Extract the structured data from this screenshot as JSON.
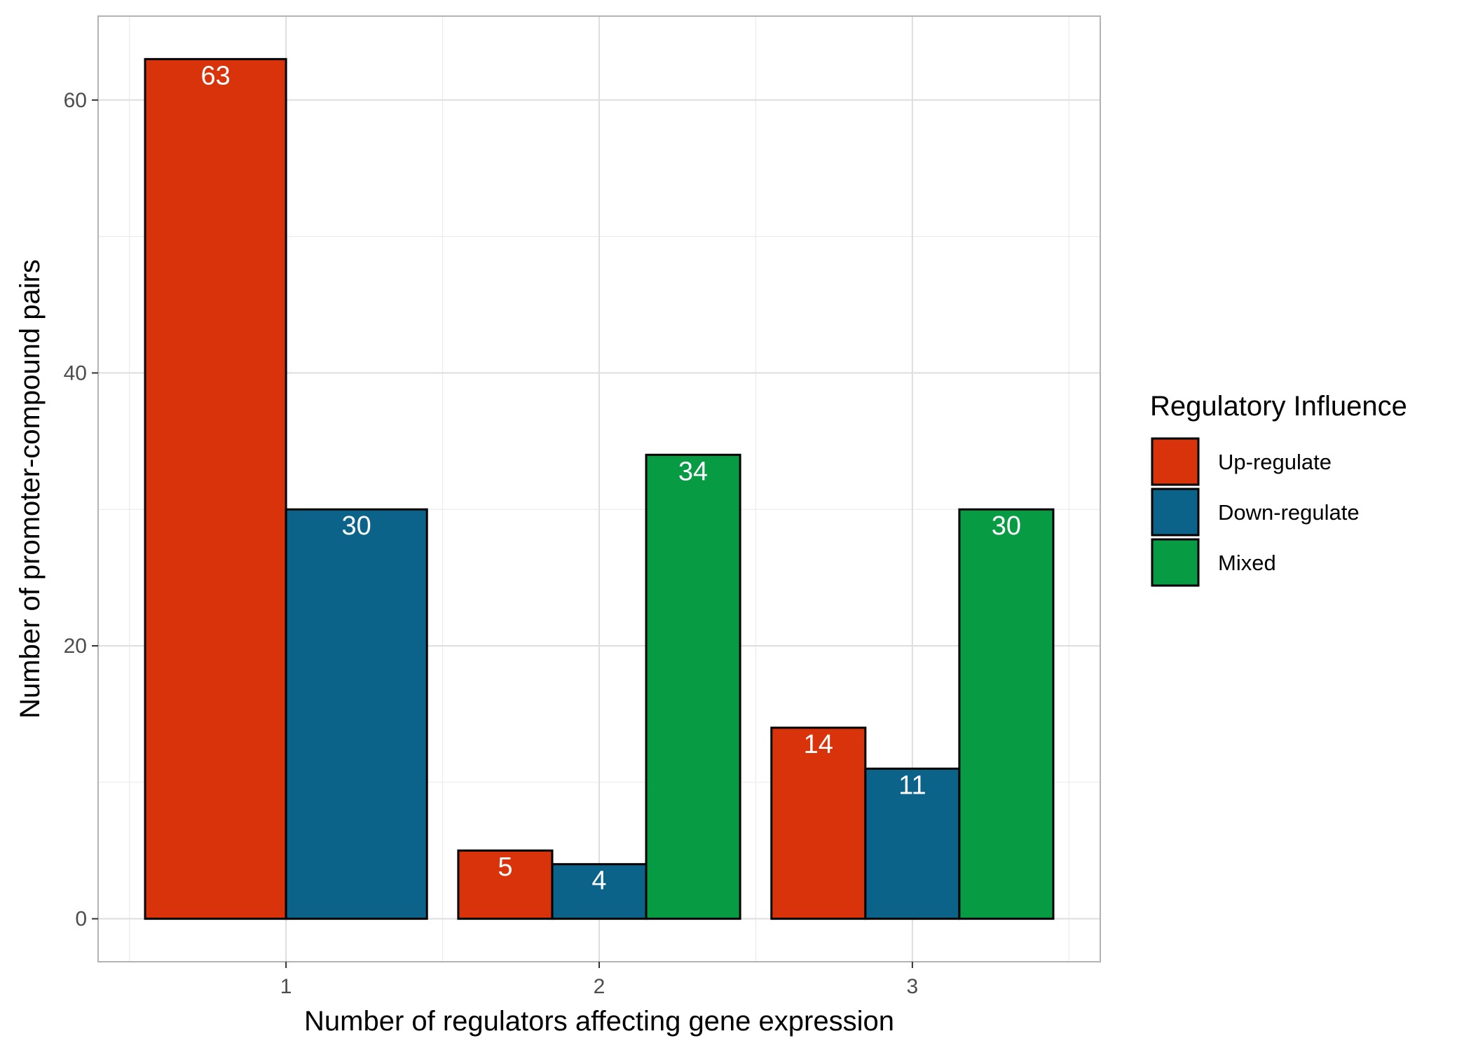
{
  "chart_data": {
    "type": "bar",
    "title": "",
    "xlabel": "Number of regulators affecting gene expression",
    "ylabel": "Number of promoter-compound pairs",
    "categories": [
      "1",
      "2",
      "3"
    ],
    "y_ticks": [
      0,
      20,
      40,
      60
    ],
    "y_tick_labels": [
      "0",
      "20",
      "40",
      "60"
    ],
    "ylim": [
      -3.15,
      66.15
    ],
    "grid": true,
    "legend": {
      "title": "Regulatory Influence",
      "position": "right"
    },
    "series": [
      {
        "name": "Up-regulate",
        "color": "#D9330B",
        "values": [
          63,
          5,
          14
        ],
        "labels": [
          "63",
          "5",
          "14"
        ]
      },
      {
        "name": "Down-regulate",
        "color": "#0B6389",
        "values": [
          30,
          4,
          11
        ],
        "labels": [
          "30",
          "4",
          "11"
        ]
      },
      {
        "name": "Mixed",
        "color": "#079B43",
        "values": [
          null,
          34,
          30
        ],
        "labels": [
          "",
          "34",
          "30"
        ]
      }
    ]
  }
}
